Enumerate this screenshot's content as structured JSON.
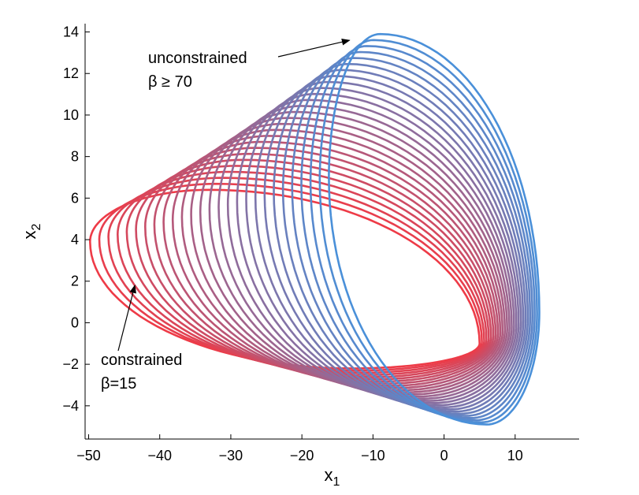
{
  "chart_data": {
    "type": "line",
    "title": "",
    "xlabel": "x",
    "xlabel_sub": "1",
    "ylabel": "x",
    "ylabel_sub": "2",
    "xlim": [
      -50.5,
      19
    ],
    "ylim": [
      -5.6,
      14.4
    ],
    "xticks": [
      -50,
      -40,
      -30,
      -20,
      -10,
      0,
      10
    ],
    "yticks": [
      -4,
      -2,
      0,
      2,
      4,
      6,
      8,
      10,
      12,
      14
    ],
    "grid": false,
    "colors": {
      "constrained": "#ee3b47",
      "unconstrained": "#4a90d9"
    },
    "family": {
      "description_param": "beta",
      "beta_constrained": 15,
      "beta_unconstrained": 70,
      "series_count": 27,
      "constrained_curve": {
        "x_min": -49.8,
        "x_max": 5.0,
        "y_min": -2.2,
        "y_max": 6.4,
        "x_at_y_max": -33,
        "x_at_y_min": -13,
        "y_at_x_min": 3.9
      },
      "unconstrained_curve": {
        "x_min": -16.2,
        "x_max": 13.4,
        "y_min": -4.9,
        "y_max": 13.9,
        "x_at_y_max": -9,
        "x_at_y_min": 6,
        "y_at_x_max": 0.5
      }
    },
    "annotations": [
      {
        "lines": [
          "unconstrained",
          "β ≥ 70"
        ],
        "arrow_to": [
          -13.3,
          13.6
        ]
      },
      {
        "lines": [
          "constrained",
          "β=15"
        ],
        "arrow_to": [
          -43.5,
          1.8
        ]
      }
    ]
  }
}
